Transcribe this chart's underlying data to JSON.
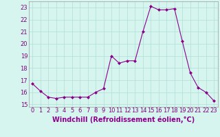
{
  "x": [
    0,
    1,
    2,
    3,
    4,
    5,
    6,
    7,
    8,
    9,
    10,
    11,
    12,
    13,
    14,
    15,
    16,
    17,
    18,
    19,
    20,
    21,
    22,
    23
  ],
  "y": [
    16.7,
    16.1,
    15.6,
    15.5,
    15.6,
    15.6,
    15.6,
    15.6,
    16.0,
    16.3,
    19.0,
    18.4,
    18.6,
    18.6,
    21.0,
    23.1,
    22.8,
    22.8,
    22.9,
    20.2,
    17.6,
    16.4,
    16.0,
    15.3
  ],
  "line_color": "#8B008B",
  "marker": "D",
  "marker_size": 2.0,
  "bg_color": "#d6f5ef",
  "grid_color": "#b0ddd5",
  "xlabel": "Windchill (Refroidissement éolien,°C)",
  "xlabel_fontsize": 7,
  "ylim": [
    14.8,
    23.5
  ],
  "xlim": [
    -0.5,
    23.5
  ],
  "yticks": [
    15,
    16,
    17,
    18,
    19,
    20,
    21,
    22,
    23
  ],
  "xticks": [
    0,
    1,
    2,
    3,
    4,
    5,
    6,
    7,
    8,
    9,
    10,
    11,
    12,
    13,
    14,
    15,
    16,
    17,
    18,
    19,
    20,
    21,
    22,
    23
  ],
  "tick_fontsize": 6,
  "line_width": 0.8
}
